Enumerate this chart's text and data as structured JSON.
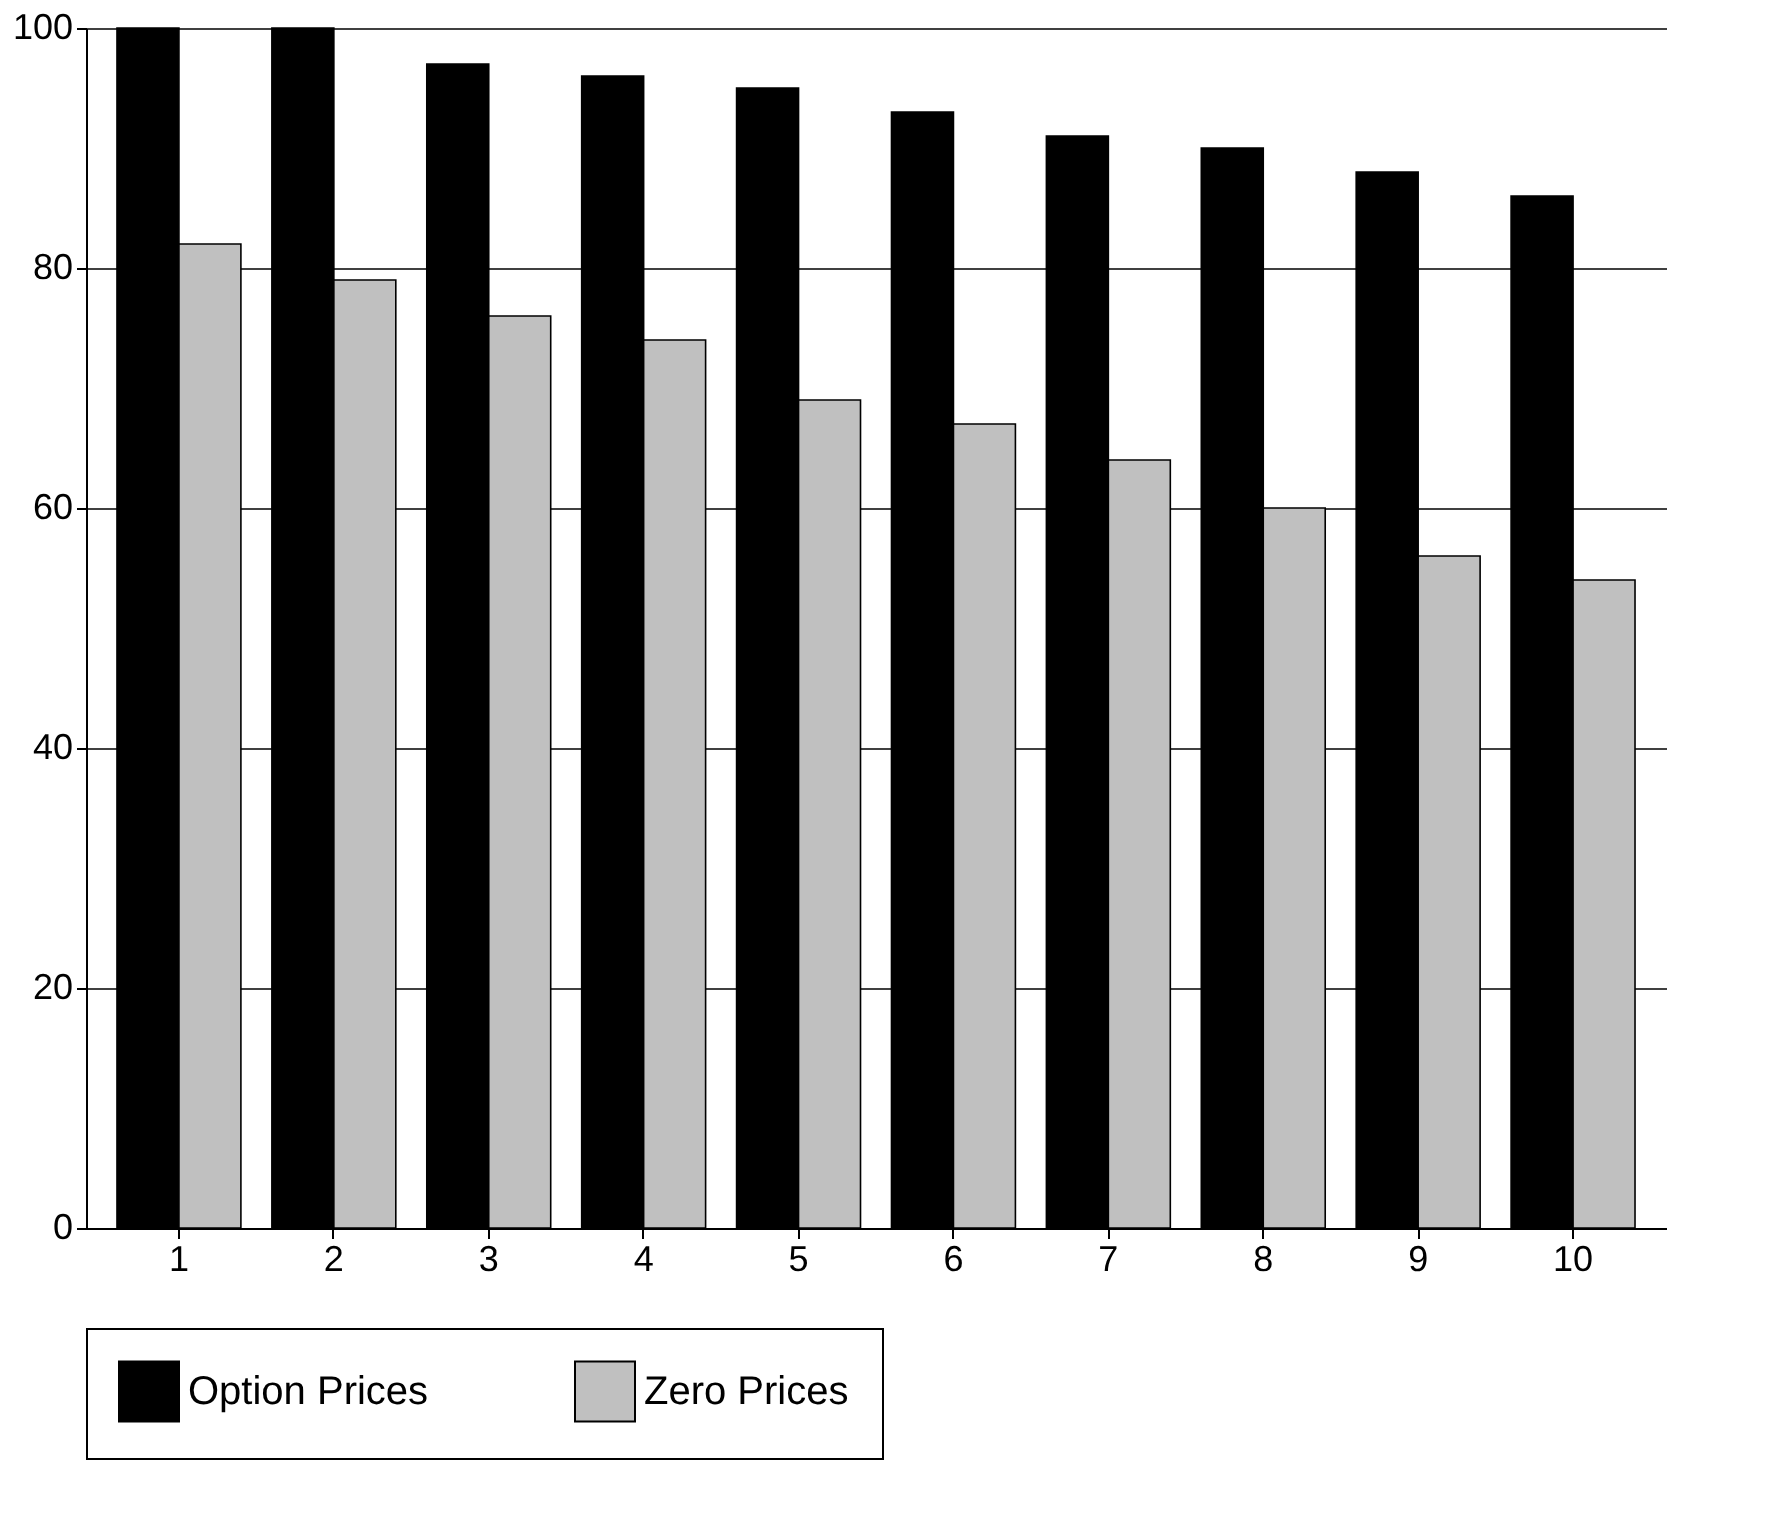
{
  "chart_data": {
    "type": "bar",
    "categories": [
      "1",
      "2",
      "3",
      "4",
      "5",
      "6",
      "7",
      "8",
      "9",
      "10"
    ],
    "series": [
      {
        "name": "Option Prices",
        "color": "#000000",
        "values": [
          100,
          100,
          97,
          96,
          95,
          93,
          91,
          90,
          88,
          86
        ]
      },
      {
        "name": "Zero Prices",
        "color": "#c0c0c0",
        "values": [
          82,
          79,
          76,
          74,
          69,
          67,
          64,
          60,
          56,
          54
        ]
      }
    ],
    "ylim": [
      0,
      100
    ],
    "yticks": [
      0,
      20,
      40,
      60,
      80,
      100
    ],
    "grid": "y",
    "legend": "bottom"
  }
}
